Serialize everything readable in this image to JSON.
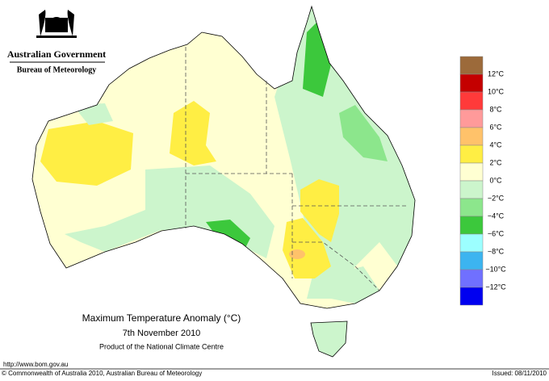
{
  "header": {
    "government": "Australian Government",
    "bureau": "Bureau of Meteorology"
  },
  "legend": {
    "colors": [
      "#9c6a3a",
      "#c40000",
      "#ff3a3a",
      "#ff9a9a",
      "#ffc26a",
      "#ffee44",
      "#ffffd2",
      "#ccf5cc",
      "#8ce68c",
      "#3cc83c",
      "#9cffff",
      "#3cb4f0",
      "#7070ff",
      "#0000f0"
    ],
    "labels": [
      "12°C",
      "10°C",
      "8°C",
      "6°C",
      "4°C",
      "2°C",
      "0°C",
      "−2°C",
      "−4°C",
      "−6°C",
      "−8°C",
      "−10°C",
      "−12°C"
    ]
  },
  "caption": {
    "title": "Maximum Temperature Anomaly (°C)",
    "date": "7th November 2010",
    "product": "Product of the National Climate Centre"
  },
  "footer": {
    "url": "http://www.bom.gov.au",
    "copyright": "© Commonwealth of Australia 2010, Australian Bureau of Meteorology",
    "issued": "Issued: 08/11/2010"
  }
}
